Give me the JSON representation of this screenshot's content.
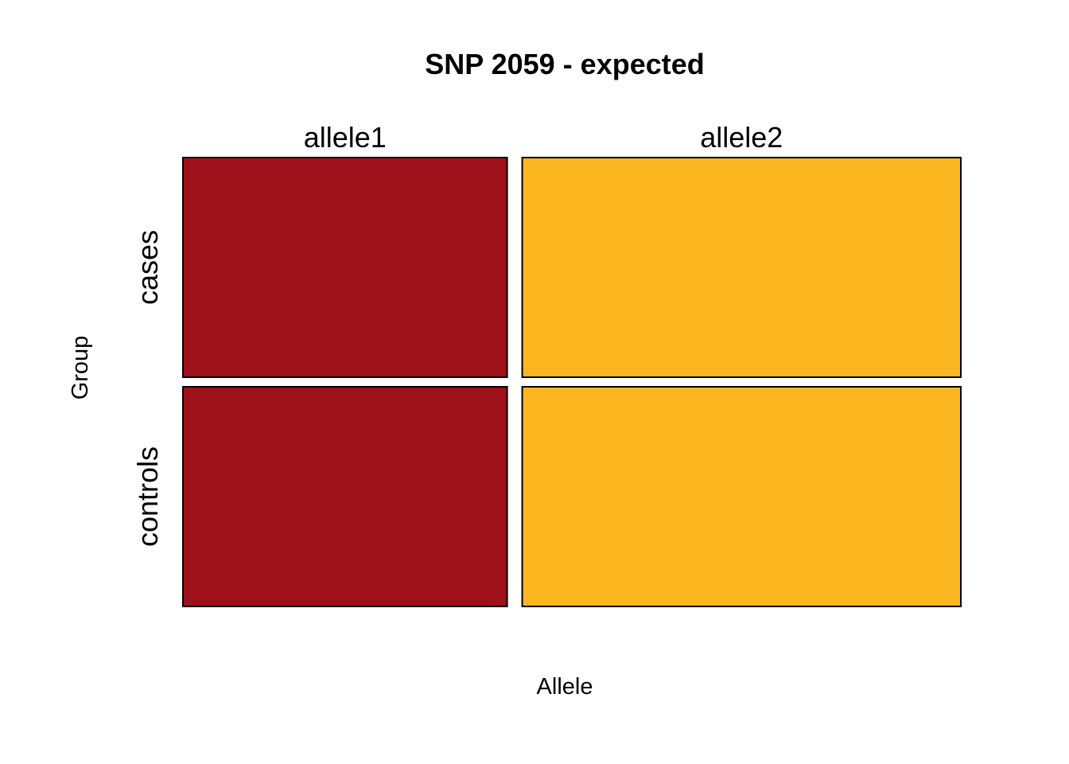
{
  "chart_data": {
    "type": "mosaic",
    "title": "SNP 2059 - expected",
    "xlabel": "Allele",
    "ylabel": "Group",
    "columns": [
      "allele1",
      "allele2"
    ],
    "rows": [
      "cases",
      "controls"
    ],
    "column_proportions": [
      0.425,
      0.575
    ],
    "row_proportions_within_column": [
      [
        0.5,
        0.5
      ],
      [
        0.5,
        0.5
      ]
    ],
    "colors": {
      "allele1": "#9E111B",
      "allele2": "#FBB620"
    }
  }
}
